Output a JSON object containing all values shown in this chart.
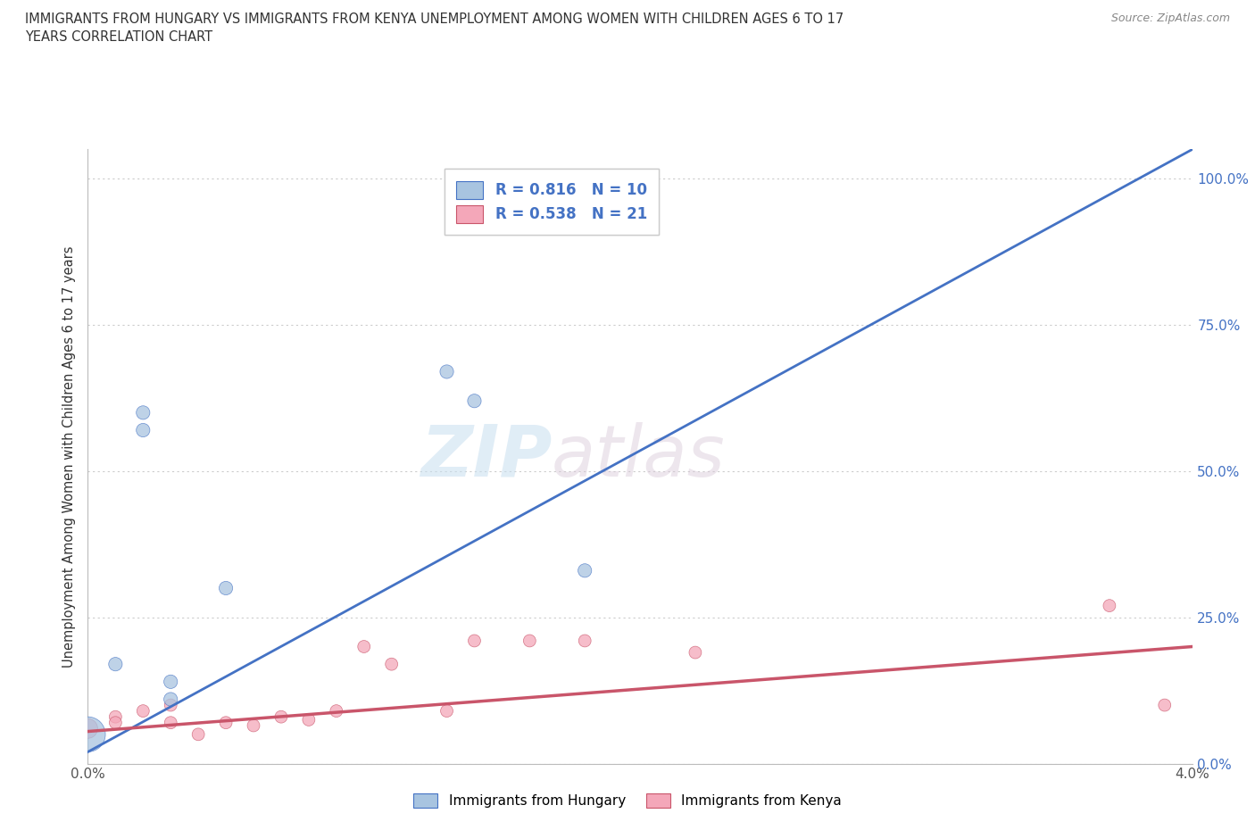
{
  "title": "IMMIGRANTS FROM HUNGARY VS IMMIGRANTS FROM KENYA UNEMPLOYMENT AMONG WOMEN WITH CHILDREN AGES 6 TO 17\nYEARS CORRELATION CHART",
  "source": "Source: ZipAtlas.com",
  "xlabel": "",
  "ylabel": "Unemployment Among Women with Children Ages 6 to 17 years",
  "xlim": [
    0.0,
    0.04
  ],
  "ylim": [
    0.0,
    1.05
  ],
  "xticks": [
    0.0,
    0.005,
    0.01,
    0.015,
    0.02,
    0.025,
    0.03,
    0.035,
    0.04
  ],
  "xtick_labels": [
    "0.0%",
    "",
    "",
    "",
    "",
    "",
    "",
    "",
    "4.0%"
  ],
  "yticks": [
    0.0,
    0.25,
    0.5,
    0.75,
    1.0
  ],
  "ytick_labels": [
    "0.0%",
    "25.0%",
    "50.0%",
    "75.0%",
    "100.0%"
  ],
  "hungary_R": 0.816,
  "hungary_N": 10,
  "kenya_R": 0.538,
  "kenya_N": 21,
  "hungary_color": "#a8c4e0",
  "hungary_line_color": "#4472c4",
  "kenya_color": "#f4a7b9",
  "kenya_line_color": "#c9556a",
  "watermark_zip": "ZIP",
  "watermark_atlas": "atlas",
  "hungary_x": [
    0.0,
    0.001,
    0.002,
    0.002,
    0.003,
    0.003,
    0.005,
    0.013,
    0.014,
    0.018
  ],
  "hungary_y": [
    0.05,
    0.17,
    0.6,
    0.57,
    0.14,
    0.11,
    0.3,
    0.67,
    0.62,
    0.33
  ],
  "hungary_size": [
    800,
    120,
    120,
    120,
    120,
    120,
    120,
    120,
    120,
    120
  ],
  "kenya_x": [
    0.0,
    0.001,
    0.001,
    0.002,
    0.003,
    0.003,
    0.004,
    0.005,
    0.006,
    0.007,
    0.008,
    0.009,
    0.01,
    0.011,
    0.013,
    0.014,
    0.016,
    0.018,
    0.022,
    0.037,
    0.039
  ],
  "kenya_y": [
    0.06,
    0.08,
    0.07,
    0.09,
    0.07,
    0.1,
    0.05,
    0.07,
    0.065,
    0.08,
    0.075,
    0.09,
    0.2,
    0.17,
    0.09,
    0.21,
    0.21,
    0.21,
    0.19,
    0.27,
    0.1
  ],
  "kenya_size": [
    250,
    100,
    100,
    100,
    100,
    100,
    100,
    100,
    100,
    100,
    100,
    100,
    100,
    100,
    100,
    100,
    100,
    100,
    100,
    100,
    100
  ],
  "hungary_line_x": [
    0.0,
    0.04
  ],
  "hungary_line_y": [
    0.02,
    1.05
  ],
  "kenya_line_x": [
    0.0,
    0.04
  ],
  "kenya_line_y": [
    0.055,
    0.2
  ]
}
